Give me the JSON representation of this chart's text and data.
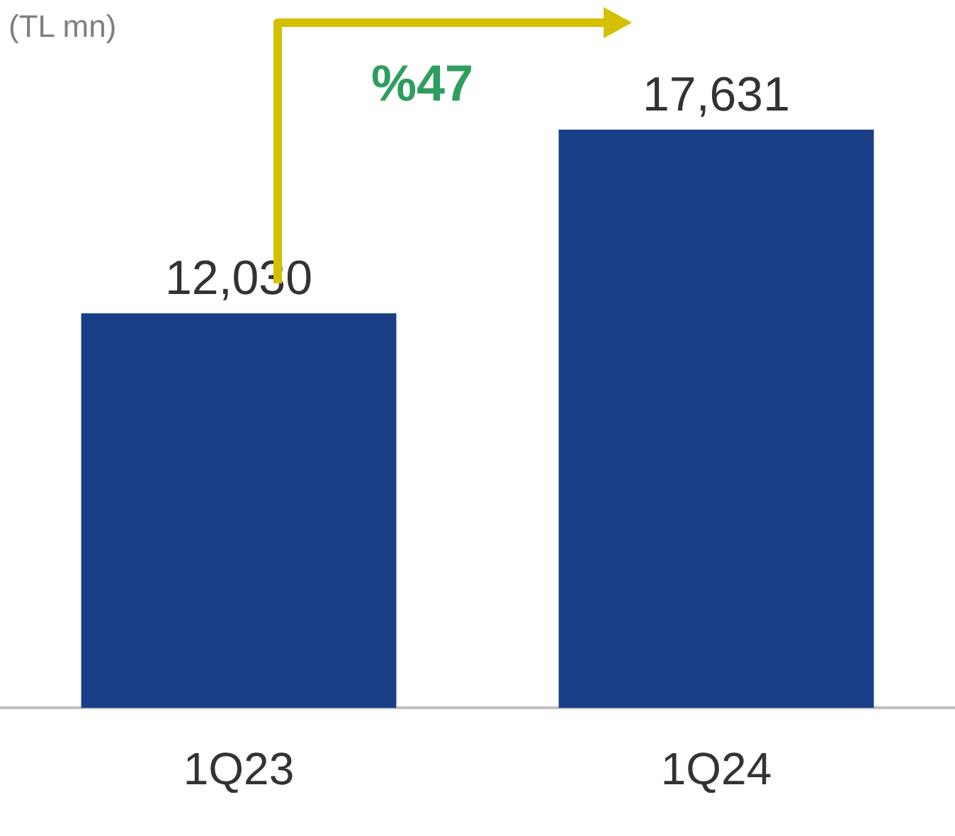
{
  "chart_data": {
    "type": "bar",
    "ylabel": "(TL mn)",
    "categories": [
      "1Q23",
      "1Q24"
    ],
    "values": [
      12030,
      17631
    ],
    "color": "#173e87",
    "value_labels": [
      "12,030",
      "17,631"
    ],
    "annotations": [
      "%47"
    ],
    "grid": false,
    "legend": false,
    "tick_labels": "x"
  }
}
